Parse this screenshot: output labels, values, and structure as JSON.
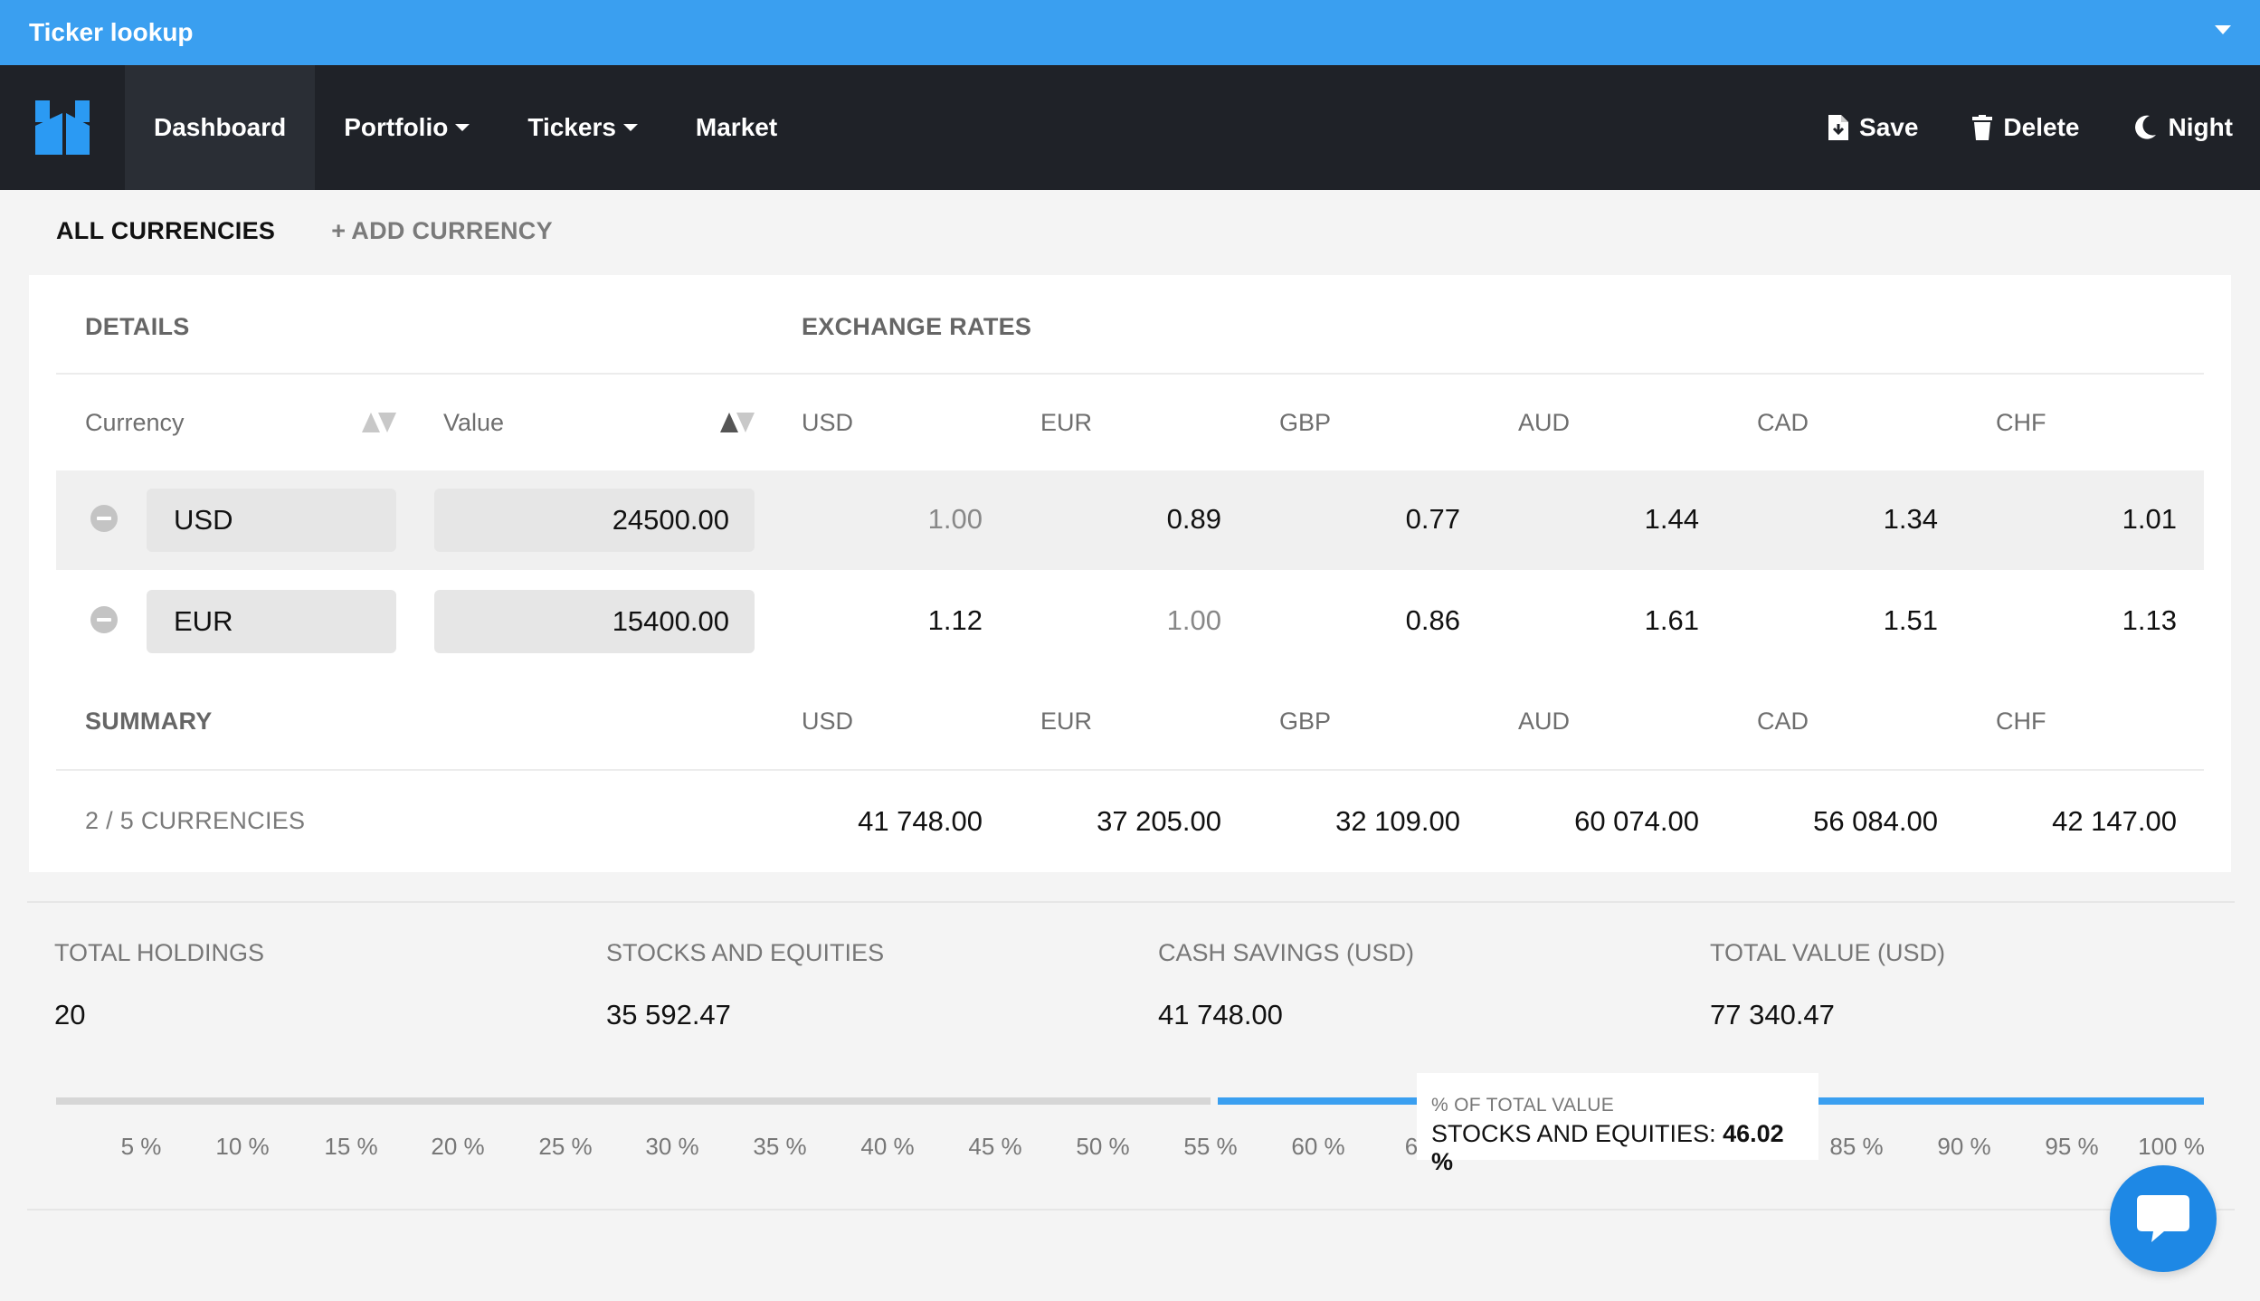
{
  "window": {
    "title": "Ticker lookup"
  },
  "nav": {
    "items": [
      {
        "label": "Dashboard"
      },
      {
        "label": "Portfolio"
      },
      {
        "label": "Tickers"
      },
      {
        "label": "Market"
      }
    ],
    "actions": [
      {
        "label": "Save",
        "icon": "save-file-icon"
      },
      {
        "label": "Delete",
        "icon": "trash-icon"
      },
      {
        "label": "Night",
        "icon": "moon-icon"
      }
    ]
  },
  "tabs": {
    "all": "ALL CURRENCIES",
    "add": "ADD CURRENCY"
  },
  "table": {
    "details_heading": "DETAILS",
    "rates_heading": "EXCHANGE RATES",
    "col_currency": "Currency",
    "col_value": "Value",
    "rate_cols": [
      "USD",
      "EUR",
      "GBP",
      "AUD",
      "CAD",
      "CHF"
    ],
    "rows": [
      {
        "currency": "USD",
        "value": "24500.00",
        "rates": [
          "1.00",
          "0.89",
          "0.77",
          "1.44",
          "1.34",
          "1.01"
        ]
      },
      {
        "currency": "EUR",
        "value": "15400.00",
        "rates": [
          "1.12",
          "1.00",
          "0.86",
          "1.61",
          "1.51",
          "1.13"
        ]
      }
    ],
    "summary_heading": "SUMMARY",
    "summary_count": "2 / 5 CURRENCIES",
    "summary_values": [
      "41 748.00",
      "37 205.00",
      "32 109.00",
      "60 074.00",
      "56 084.00",
      "42 147.00"
    ]
  },
  "totals": {
    "holdings_label": "TOTAL HOLDINGS",
    "holdings_value": "20",
    "stocks_label": "STOCKS AND EQUITIES",
    "stocks_value": "35 592.47",
    "cash_label": "CASH SAVINGS (USD)",
    "cash_value": "41 748.00",
    "total_label": "TOTAL VALUE (USD)",
    "total_value": "77 340.47"
  },
  "progress": {
    "ticks": [
      "5 %",
      "10 %",
      "15 %",
      "20 %",
      "25 %",
      "30 %",
      "35 %",
      "40 %",
      "45 %",
      "50 %",
      "55 %",
      "60 %",
      "6",
      "85 %",
      "90 %",
      "95 %",
      "100 %"
    ],
    "tooltip_caption": "% OF TOTAL VALUE",
    "tooltip_label": "STOCKS AND EQUITIES:",
    "tooltip_value": "46.02 %",
    "stocks_percent": 46.02
  },
  "colors": {
    "accent": "#3a9ff0",
    "nav_bg": "#1f2228"
  }
}
